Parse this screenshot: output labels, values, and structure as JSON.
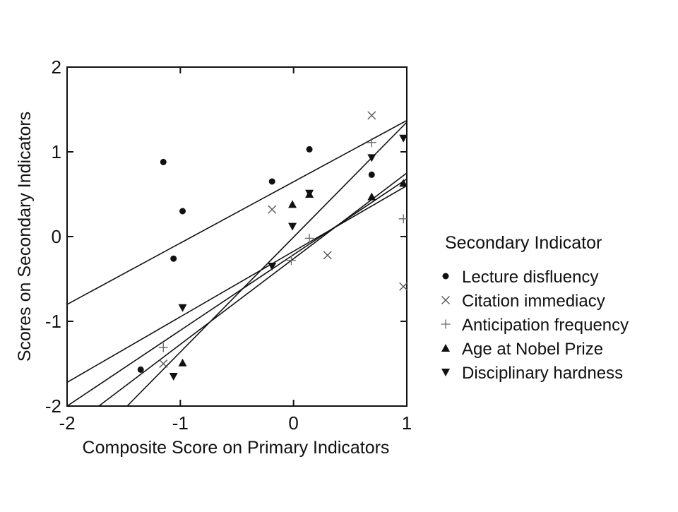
{
  "chart_data": {
    "type": "scatter",
    "xlabel": "Composite Score on Primary Indicators",
    "ylabel": "Scores on Secondary Indicators",
    "xlim": [
      -2,
      1
    ],
    "ylim": [
      -2,
      2
    ],
    "xticks": [
      "-2",
      "-1",
      "0",
      "1"
    ],
    "yticks": [
      "2",
      "1",
      "0",
      "-1",
      "-2"
    ],
    "xtick_values": [
      -2,
      -1,
      0,
      1
    ],
    "ytick_values": [
      2,
      1,
      0,
      -1,
      -2
    ],
    "grid": false,
    "legend_placement": "right-outside",
    "legend_title": "Secondary Indicator",
    "series": [
      {
        "name": "Lecture disfluency",
        "marker": "filled-circle",
        "x": [
          -1.15,
          -0.98,
          -1.06,
          -0.19,
          0.14,
          0.69,
          -1.35
        ],
        "y": [
          0.88,
          0.3,
          -0.26,
          0.65,
          1.03,
          0.73,
          -1.57
        ],
        "fit": [
          [
            -2,
            -0.8
          ],
          [
            1,
            1.37
          ]
        ]
      },
      {
        "name": "Citation immediacy",
        "marker": "x",
        "x": [
          0.69,
          -0.19,
          0.3,
          0.97,
          -1.15
        ],
        "y": [
          1.43,
          0.32,
          -0.22,
          -0.59,
          -1.5
        ],
        "fit": [
          [
            -2,
            -1.72
          ],
          [
            1,
            0.6
          ]
        ]
      },
      {
        "name": "Anticipation frequency",
        "marker": "plus",
        "x": [
          0.69,
          0.97,
          0.14,
          -0.02,
          -1.15
        ],
        "y": [
          1.11,
          0.21,
          -0.02,
          -0.28,
          -1.31
        ],
        "fit": [
          [
            -2,
            -2.0
          ],
          [
            1,
            0.68
          ]
        ]
      },
      {
        "name": "Age at Nobel Prize",
        "marker": "triangle-up",
        "x": [
          -0.01,
          0.14,
          0.69,
          0.97,
          -0.98
        ],
        "y": [
          0.38,
          0.5,
          0.47,
          0.63,
          -1.49
        ],
        "fit": [
          [
            -1.72,
            -2.0
          ],
          [
            1,
            0.75
          ]
        ]
      },
      {
        "name": "Disciplinary hardness",
        "marker": "triangle-down",
        "x": [
          0.69,
          0.97,
          0.14,
          -0.01,
          -0.19,
          -0.98,
          -1.06
        ],
        "y": [
          0.93,
          1.16,
          0.51,
          0.12,
          -0.35,
          -0.84,
          -1.65
        ],
        "fit": [
          [
            -1.47,
            -2.0
          ],
          [
            1,
            1.35
          ]
        ]
      }
    ]
  }
}
